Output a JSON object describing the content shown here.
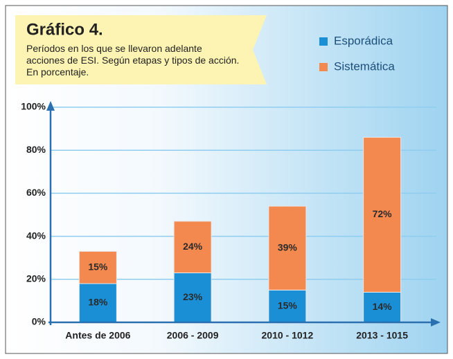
{
  "chart_data": {
    "type": "stacked_bar",
    "title": "Gráfico 4.",
    "subtitle": "Períodos en los que se llevaron adelante acciones de ESI. Según etapas y tipos de acción. En porcentaje.",
    "categories": [
      "Antes de 2006",
      "2006 - 2009",
      "2010 - 1012",
      "2013 - 1015"
    ],
    "series": [
      {
        "name": "Esporádica",
        "color": "#1a8fd6",
        "values": [
          18,
          23,
          15,
          14
        ],
        "value_labels": [
          "18%",
          "23%",
          "15%",
          "14%"
        ]
      },
      {
        "name": "Sistemática",
        "color": "#f4894f",
        "values": [
          15,
          24,
          39,
          72
        ],
        "value_labels": [
          "15%",
          "24%",
          "39%",
          "72%"
        ]
      }
    ],
    "ylim": [
      0,
      100
    ],
    "yticks": [
      {
        "value": 0,
        "label": "0%"
      },
      {
        "value": 20,
        "label": "20%"
      },
      {
        "value": 40,
        "label": "40%"
      },
      {
        "value": 60,
        "label": "60%"
      },
      {
        "value": 80,
        "label": "80%"
      },
      {
        "value": 100,
        "label": "100%"
      }
    ],
    "grid": true,
    "legend": "upper right"
  }
}
